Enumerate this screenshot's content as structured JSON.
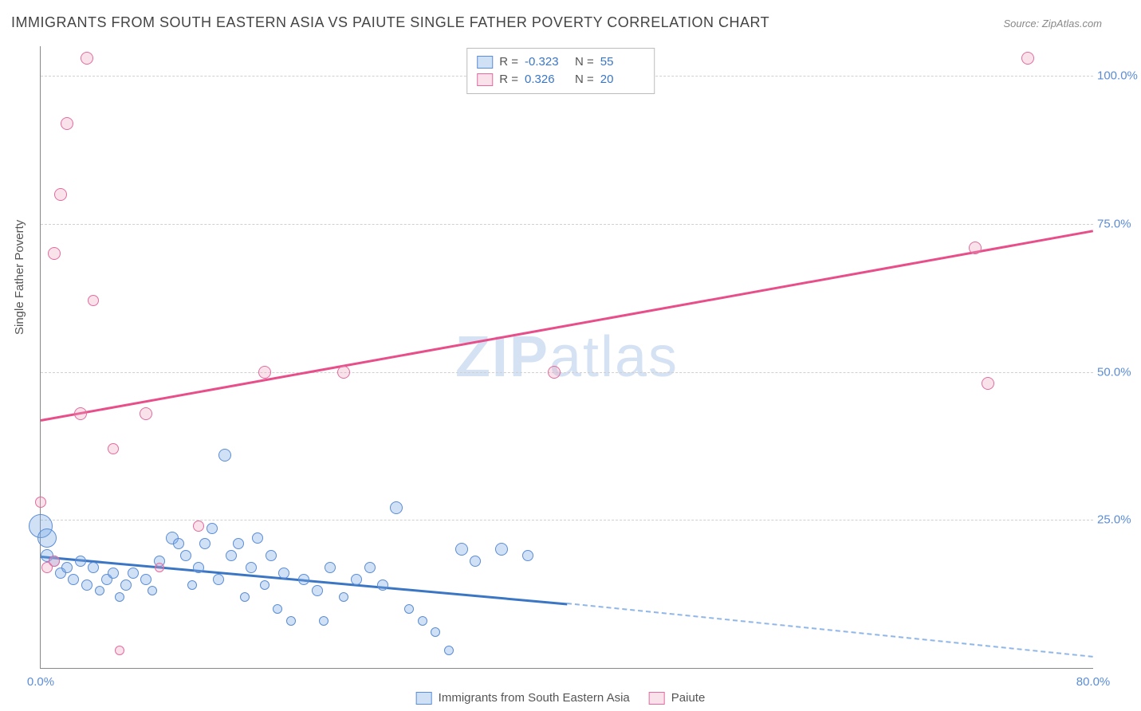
{
  "title": "IMMIGRANTS FROM SOUTH EASTERN ASIA VS PAIUTE SINGLE FATHER POVERTY CORRELATION CHART",
  "source": "Source: ZipAtlas.com",
  "ylabel": "Single Father Poverty",
  "watermark_a": "ZIP",
  "watermark_b": "atlas",
  "chart": {
    "type": "scatter",
    "xlim": [
      0,
      80
    ],
    "ylim": [
      0,
      105
    ],
    "xticks": [
      {
        "v": 0,
        "label": "0.0%"
      },
      {
        "v": 80,
        "label": "80.0%"
      }
    ],
    "yticks": [
      {
        "v": 25,
        "label": "25.0%"
      },
      {
        "v": 50,
        "label": "50.0%"
      },
      {
        "v": 75,
        "label": "75.0%"
      },
      {
        "v": 100,
        "label": "100.0%"
      }
    ],
    "background_color": "#ffffff",
    "grid_color": "#d0d0d0",
    "axis_color": "#888888",
    "tick_text_color": "#5b8dd6",
    "bubble_base_size": 12,
    "series": [
      {
        "name": "Immigrants from South Eastern Asia",
        "color_fill": "rgba(120,170,230,0.35)",
        "color_stroke": "#5b8dd6",
        "R": "-0.323",
        "N": "55",
        "trend": {
          "x1": 0,
          "y1": 19,
          "x2": 40,
          "y2": 11,
          "extend_x": 80,
          "extend_y": 2,
          "solid_color": "#3b76c4",
          "dash_color": "#8fb6e6"
        },
        "points": [
          {
            "x": 0,
            "y": 24,
            "s": 28
          },
          {
            "x": 0.5,
            "y": 22,
            "s": 22
          },
          {
            "x": 0.5,
            "y": 19,
            "s": 14
          },
          {
            "x": 1,
            "y": 18,
            "s": 12
          },
          {
            "x": 1.5,
            "y": 16,
            "s": 12
          },
          {
            "x": 2,
            "y": 17,
            "s": 12
          },
          {
            "x": 2.5,
            "y": 15,
            "s": 12
          },
          {
            "x": 3,
            "y": 18,
            "s": 12
          },
          {
            "x": 3.5,
            "y": 14,
            "s": 12
          },
          {
            "x": 4,
            "y": 17,
            "s": 12
          },
          {
            "x": 4.5,
            "y": 13,
            "s": 10
          },
          {
            "x": 5,
            "y": 15,
            "s": 12
          },
          {
            "x": 5.5,
            "y": 16,
            "s": 12
          },
          {
            "x": 6,
            "y": 12,
            "s": 10
          },
          {
            "x": 6.5,
            "y": 14,
            "s": 12
          },
          {
            "x": 7,
            "y": 16,
            "s": 12
          },
          {
            "x": 8,
            "y": 15,
            "s": 12
          },
          {
            "x": 8.5,
            "y": 13,
            "s": 10
          },
          {
            "x": 9,
            "y": 18,
            "s": 12
          },
          {
            "x": 10,
            "y": 22,
            "s": 14
          },
          {
            "x": 10.5,
            "y": 21,
            "s": 12
          },
          {
            "x": 11,
            "y": 19,
            "s": 12
          },
          {
            "x": 11.5,
            "y": 14,
            "s": 10
          },
          {
            "x": 12,
            "y": 17,
            "s": 12
          },
          {
            "x": 12.5,
            "y": 21,
            "s": 12
          },
          {
            "x": 13,
            "y": 23.5,
            "s": 12
          },
          {
            "x": 13.5,
            "y": 15,
            "s": 12
          },
          {
            "x": 14,
            "y": 36,
            "s": 14
          },
          {
            "x": 14.5,
            "y": 19,
            "s": 12
          },
          {
            "x": 15,
            "y": 21,
            "s": 12
          },
          {
            "x": 15.5,
            "y": 12,
            "s": 10
          },
          {
            "x": 16,
            "y": 17,
            "s": 12
          },
          {
            "x": 16.5,
            "y": 22,
            "s": 12
          },
          {
            "x": 17,
            "y": 14,
            "s": 10
          },
          {
            "x": 17.5,
            "y": 19,
            "s": 12
          },
          {
            "x": 18,
            "y": 10,
            "s": 10
          },
          {
            "x": 18.5,
            "y": 16,
            "s": 12
          },
          {
            "x": 19,
            "y": 8,
            "s": 10
          },
          {
            "x": 20,
            "y": 15,
            "s": 12
          },
          {
            "x": 21,
            "y": 13,
            "s": 12
          },
          {
            "x": 21.5,
            "y": 8,
            "s": 10
          },
          {
            "x": 22,
            "y": 17,
            "s": 12
          },
          {
            "x": 23,
            "y": 12,
            "s": 10
          },
          {
            "x": 24,
            "y": 15,
            "s": 12
          },
          {
            "x": 25,
            "y": 17,
            "s": 12
          },
          {
            "x": 26,
            "y": 14,
            "s": 12
          },
          {
            "x": 27,
            "y": 27,
            "s": 14
          },
          {
            "x": 28,
            "y": 10,
            "s": 10
          },
          {
            "x": 29,
            "y": 8,
            "s": 10
          },
          {
            "x": 30,
            "y": 6,
            "s": 10
          },
          {
            "x": 31,
            "y": 3,
            "s": 10
          },
          {
            "x": 32,
            "y": 20,
            "s": 14
          },
          {
            "x": 33,
            "y": 18,
            "s": 12
          },
          {
            "x": 35,
            "y": 20,
            "s": 14
          },
          {
            "x": 37,
            "y": 19,
            "s": 12
          }
        ]
      },
      {
        "name": "Paiute",
        "color_fill": "rgba(240,160,190,0.30)",
        "color_stroke": "#e36ba0",
        "R": "0.326",
        "N": "20",
        "trend": {
          "x1": 0,
          "y1": 42,
          "x2": 80,
          "y2": 74,
          "extend_x": 80,
          "extend_y": 74,
          "solid_color": "#e84f8a",
          "dash_color": "#f2a8c6"
        },
        "points": [
          {
            "x": 0,
            "y": 28,
            "s": 12
          },
          {
            "x": 0.5,
            "y": 17,
            "s": 12
          },
          {
            "x": 1,
            "y": 18,
            "s": 12
          },
          {
            "x": 1,
            "y": 70,
            "s": 14
          },
          {
            "x": 1.5,
            "y": 80,
            "s": 14
          },
          {
            "x": 2,
            "y": 92,
            "s": 14
          },
          {
            "x": 3,
            "y": 43,
            "s": 14
          },
          {
            "x": 3.5,
            "y": 103,
            "s": 14
          },
          {
            "x": 4,
            "y": 62,
            "s": 12
          },
          {
            "x": 5.5,
            "y": 37,
            "s": 12
          },
          {
            "x": 6,
            "y": 3,
            "s": 10
          },
          {
            "x": 8,
            "y": 43,
            "s": 14
          },
          {
            "x": 9,
            "y": 17,
            "s": 10
          },
          {
            "x": 12,
            "y": 24,
            "s": 12
          },
          {
            "x": 17,
            "y": 50,
            "s": 14
          },
          {
            "x": 23,
            "y": 50,
            "s": 14
          },
          {
            "x": 39,
            "y": 50,
            "s": 14
          },
          {
            "x": 71,
            "y": 71,
            "s": 14
          },
          {
            "x": 72,
            "y": 48,
            "s": 14
          },
          {
            "x": 75,
            "y": 103,
            "s": 14
          }
        ]
      }
    ]
  },
  "legend_top": {
    "rows": [
      {
        "swatch": "blue",
        "Rlabel": "R =",
        "Rval": "-0.323",
        "Nlabel": "N =",
        "Nval": "55"
      },
      {
        "swatch": "pink",
        "Rlabel": "R =",
        "Rval": "0.326",
        "Nlabel": "N =",
        "Nval": "20"
      }
    ]
  },
  "legend_bottom": {
    "items": [
      {
        "swatch": "blue",
        "label": "Immigrants from South Eastern Asia"
      },
      {
        "swatch": "pink",
        "label": "Paiute"
      }
    ]
  }
}
